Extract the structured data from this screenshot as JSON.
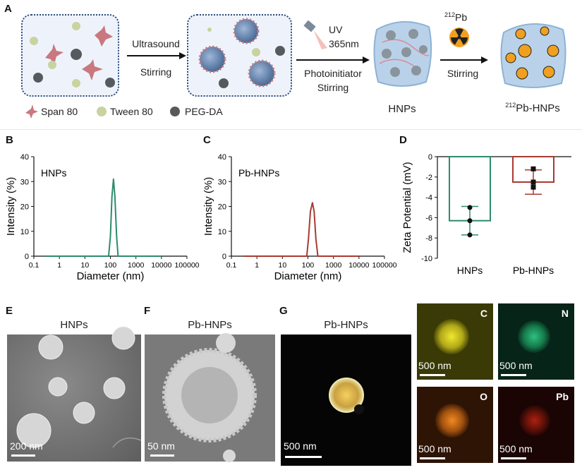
{
  "panel_labels": {
    "A": "A",
    "B": "B",
    "C": "C",
    "D": "D",
    "E": "E",
    "F": "F",
    "G": "G"
  },
  "scheme": {
    "step1_top": "Ultrasound",
    "step1_bottom": "Stirring",
    "uv_line1": "UV",
    "uv_line2": "365nm",
    "step2_bottom1": "Photoinitiator",
    "step2_bottom2": "Stirring",
    "pb_sup": "212",
    "pb_main": "Pb",
    "step3_bottom": "Stirring",
    "product1": "HNPs",
    "product2_sup": "212",
    "product2_main": "Pb-HNPs",
    "legend": [
      "Span 80",
      "Tween 80",
      "PEG-DA"
    ],
    "colors": {
      "span80": "#c9787f",
      "tween80": "#c8d3a0",
      "pegda": "#555a5e",
      "radiation": "#f0a020"
    }
  },
  "chart_data": [
    {
      "type": "line",
      "panel": "B",
      "annotation": "HNPs",
      "xlabel": "Diameter (nm)",
      "ylabel": "Intensity (%)",
      "xscale": "log",
      "xlim": [
        0.1,
        100000
      ],
      "ylim": [
        0,
        40
      ],
      "xticks": [
        "0.1",
        "1",
        "10",
        "100",
        "1000",
        "10000",
        "100000"
      ],
      "yticks": [
        "0",
        "10",
        "20",
        "30",
        "40"
      ],
      "color": "#2e8b6e",
      "x": [
        0.3,
        85,
        100,
        115,
        132,
        150,
        175,
        200,
        10000
      ],
      "y": [
        0,
        0,
        8,
        24,
        31,
        24,
        8,
        0,
        0
      ]
    },
    {
      "type": "line",
      "panel": "C",
      "annotation": "Pb-HNPs",
      "xlabel": "Diameter (nm)",
      "ylabel": "Intensity (%)",
      "xscale": "log",
      "xlim": [
        0.1,
        100000
      ],
      "ylim": [
        0,
        40
      ],
      "xticks": [
        "0.1",
        "1",
        "10",
        "100",
        "1000",
        "10000",
        "100000"
      ],
      "yticks": [
        "0",
        "10",
        "20",
        "30",
        "40"
      ],
      "color": "#a83a32",
      "x": [
        0.3,
        90,
        105,
        125,
        150,
        175,
        205,
        245,
        10000
      ],
      "y": [
        0,
        0,
        7,
        18,
        21.5,
        18,
        7,
        0,
        0
      ]
    },
    {
      "type": "bar",
      "panel": "D",
      "ylabel": "Zeta Potential (mV)",
      "ylim": [
        -10,
        0
      ],
      "yticks": [
        "0",
        "-2",
        "-4",
        "-6",
        "-8",
        "-10"
      ],
      "categories": [
        "HNPs",
        "Pb-HNPs"
      ],
      "values": [
        -6.3,
        -2.5
      ],
      "errors": [
        1.4,
        1.2
      ],
      "points": [
        [
          -5.0,
          -6.3,
          -7.7
        ],
        [
          -1.2,
          -2.5,
          -3.0
        ]
      ],
      "colors": [
        "#2e8b6e",
        "#a83a32"
      ]
    }
  ],
  "micrographs": {
    "E_title": "HNPs",
    "E_scale": "200 nm",
    "F_title": "Pb-HNPs",
    "F_scale": "50 nm",
    "G_title": "Pb-HNPs",
    "G_scale": "500 nm",
    "maps": [
      {
        "element": "C",
        "scale": "500 nm",
        "color": "#d8d020"
      },
      {
        "element": "N",
        "scale": "500 nm",
        "color": "#20b070"
      },
      {
        "element": "O",
        "scale": "500 nm",
        "color": "#e07818"
      },
      {
        "element": "Pb",
        "scale": "500 nm",
        "color": "#c02818"
      }
    ]
  }
}
